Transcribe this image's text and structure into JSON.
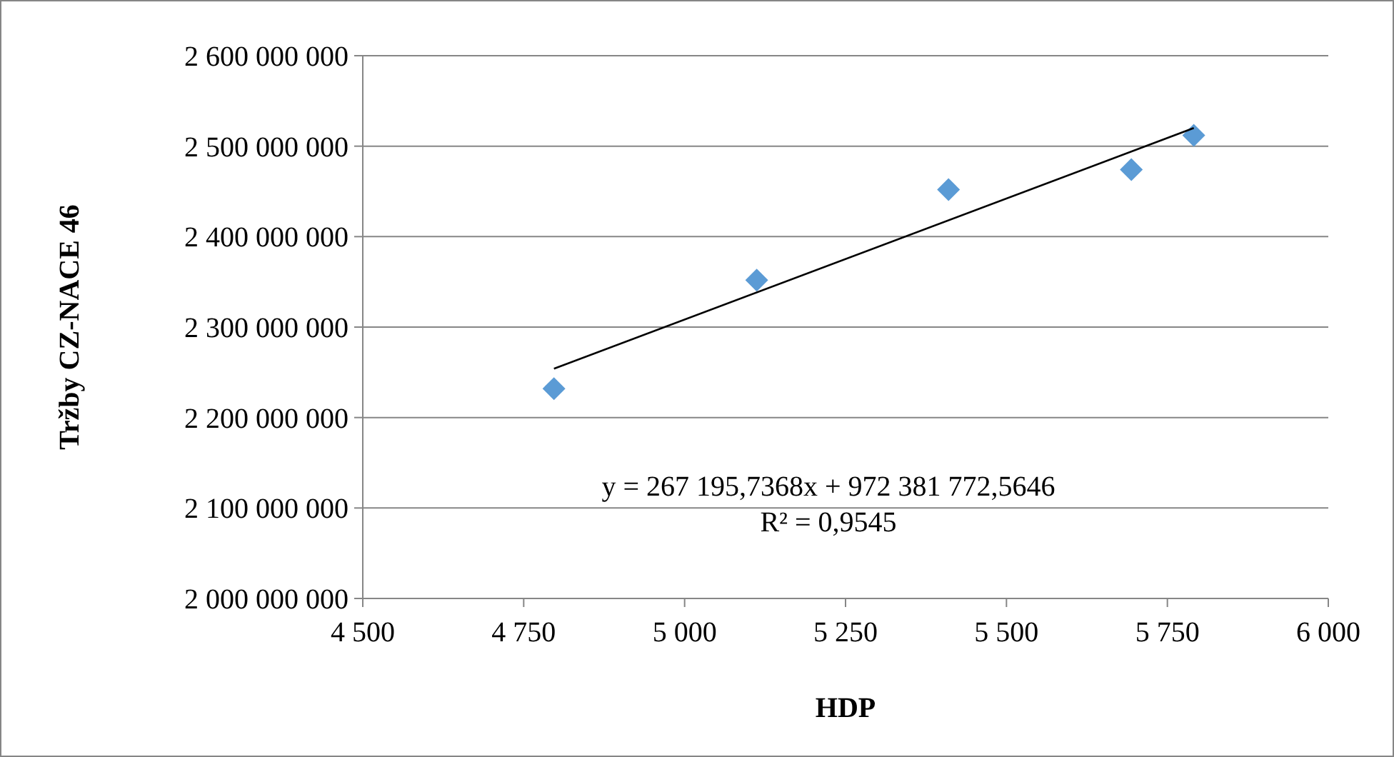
{
  "chart_data": {
    "type": "scatter",
    "xlabel": "HDP",
    "ylabel": "Tržby CZ-NACE 46",
    "xlim": [
      4500,
      6000
    ],
    "xticks": [
      {
        "value": 4500,
        "label": "4 500"
      },
      {
        "value": 4750,
        "label": "4 750"
      },
      {
        "value": 5000,
        "label": "5 000"
      },
      {
        "value": 5250,
        "label": "5 250"
      },
      {
        "value": 5500,
        "label": "5 500"
      },
      {
        "value": 5750,
        "label": "5 750"
      },
      {
        "value": 6000,
        "label": "6 000"
      }
    ],
    "ylim": [
      2000000000,
      2600000000
    ],
    "yticks": [
      {
        "value": 2000000000,
        "label": "2 000 000 000"
      },
      {
        "value": 2100000000,
        "label": "2 100 000 000"
      },
      {
        "value": 2200000000,
        "label": "2 200 000 000"
      },
      {
        "value": 2300000000,
        "label": "2 300 000 000"
      },
      {
        "value": 2400000000,
        "label": "2 400 000 000"
      },
      {
        "value": 2500000000,
        "label": "2 500 000 000"
      },
      {
        "value": 2600000000,
        "label": "2 600 000 000"
      }
    ],
    "grid": "y",
    "marker": "diamond",
    "series": [
      {
        "color": "#5b9bd5",
        "x": [
          4797,
          5112,
          5410,
          5694,
          5791
        ],
        "values": [
          2232000000,
          2352000000,
          2452000000,
          2474000000,
          2512000000
        ]
      },
      {
        "type": "line",
        "color": "#000000",
        "marker": "none",
        "line_style": "solid",
        "x": [
          4797,
          5791
        ],
        "values": [
          2254000000,
          2520000000
        ]
      }
    ],
    "annotations": [
      "y = 267 195,7368x + 972 381 772,5646",
      "R² = 0,9545"
    ]
  }
}
